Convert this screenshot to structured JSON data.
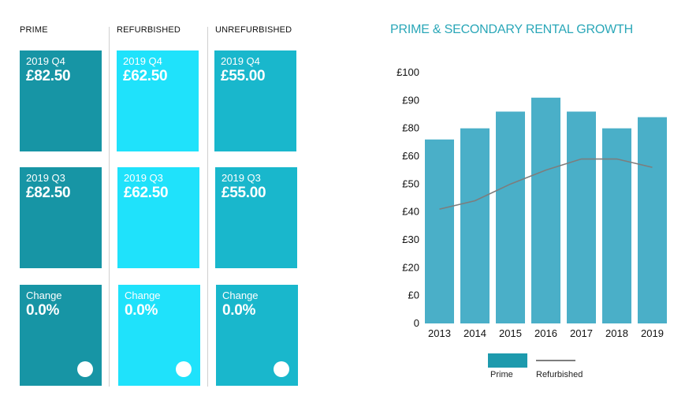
{
  "columns": [
    {
      "header": "PRIME",
      "color": "#1795a5",
      "cards": [
        {
          "label": "2019 Q4",
          "value": "£82.50"
        },
        {
          "label": "2019 Q3",
          "value": "£82.50"
        },
        {
          "label": "Change",
          "value": "0.0%"
        }
      ]
    },
    {
      "header": "REFURBISHED",
      "color": "#1fe2fb",
      "cards": [
        {
          "label": "2019 Q4",
          "value": "£62.50"
        },
        {
          "label": "2019 Q3",
          "value": "£62.50"
        },
        {
          "label": "Change",
          "value": "0.0%"
        }
      ]
    },
    {
      "header": "UNREFURBISHED",
      "color": "#19b7cc",
      "cards": [
        {
          "label": "2019 Q4",
          "value": "£55.00"
        },
        {
          "label": "2019 Q3",
          "value": "£55.00"
        },
        {
          "label": "Change",
          "value": "0.0%"
        }
      ]
    }
  ],
  "chart_data": {
    "type": "bar",
    "title": "PRIME & SECONDARY RENTAL GROWTH",
    "categories": [
      "2013",
      "2014",
      "2015",
      "2016",
      "2017",
      "2018",
      "2019"
    ],
    "y_tick_labels": [
      "0",
      "£0",
      "£20",
      "£30",
      "£40",
      "£50",
      "£60",
      "£80",
      "£90",
      "£100"
    ],
    "series": [
      {
        "name": "Prime",
        "type": "bar",
        "color": "#4aafc8",
        "values": [
          6.6,
          7.0,
          7.6,
          8.1,
          7.6,
          7.0,
          7.4
        ]
      },
      {
        "name": "Refurbished",
        "type": "line",
        "color": "#7d7d7d",
        "values": [
          4.1,
          4.4,
          5.0,
          5.5,
          5.9,
          5.9,
          5.6
        ]
      }
    ],
    "ylim": [
      0,
      9
    ],
    "grid": false,
    "legend": "bottom-center"
  }
}
